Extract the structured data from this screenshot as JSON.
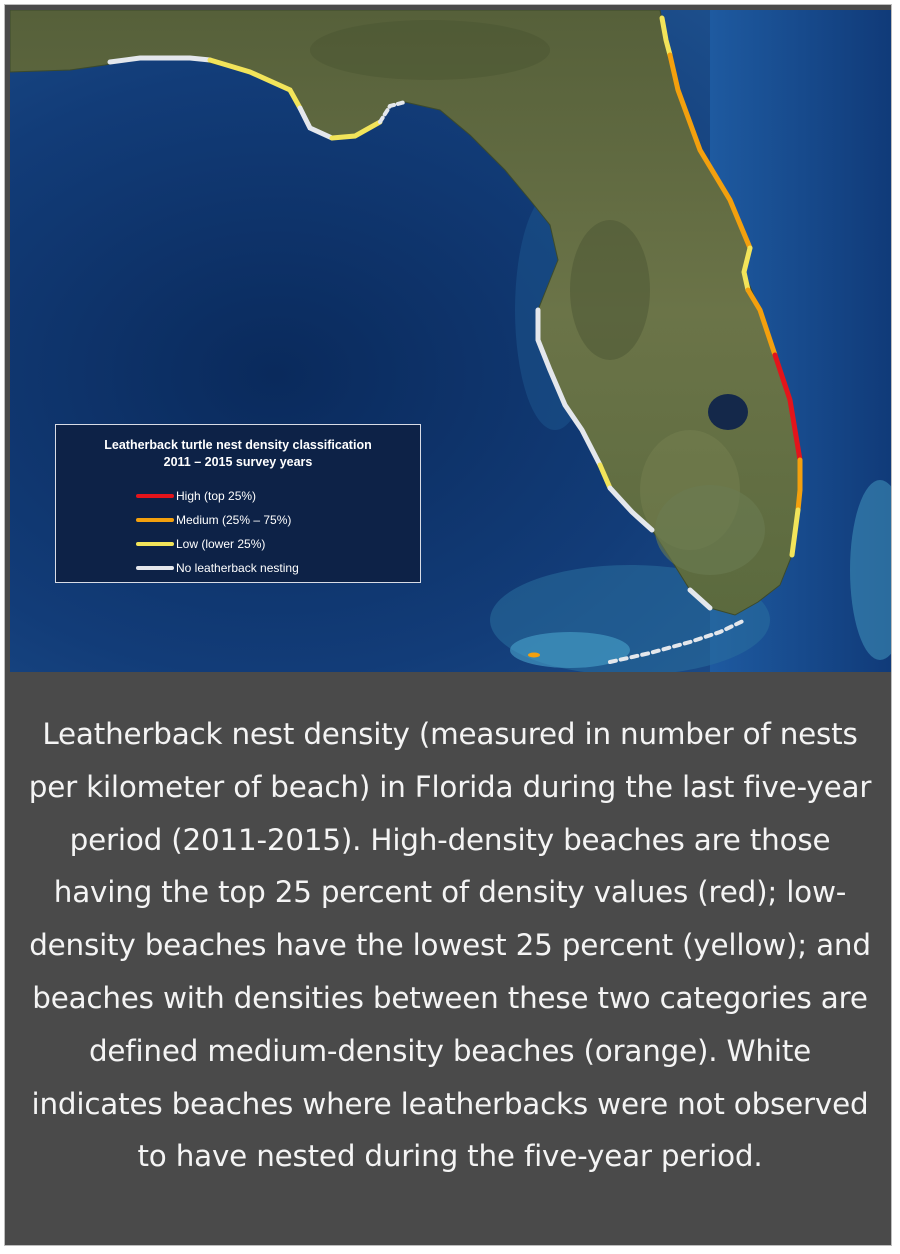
{
  "colors": {
    "high": "#e3141b",
    "medium": "#f3a00e",
    "low": "#f2e45a",
    "none": "#e4e7ec",
    "ocean": "#11356d",
    "land": "#5f6a3c",
    "caption_bg": "#4a4a4a"
  },
  "legend": {
    "title_line1": "Leatherback turtle nest density classification",
    "title_line2": "2011 – 2015 survey years",
    "items": [
      {
        "label": "High (top 25%)",
        "color": "#e3141b"
      },
      {
        "label": "Medium (25% – 75%)",
        "color": "#f3a00e"
      },
      {
        "label": "Low (lower 25%)",
        "color": "#f2e45a"
      },
      {
        "label": "No leatherback nesting",
        "color": "#e4e7ec"
      }
    ]
  },
  "caption": "Leatherback nest density (measured in number of nests per kilometer of beach) in Florida during the last five-year period (2011-2015). High-density beaches are those having the top 25 percent of density values (red); low-density beaches have the lowest 25 percent (yellow); and beaches with densities between these two categories are defined medium-density beaches (orange). White indicates beaches where leatherbacks were not observed to have nested during the five-year period."
}
